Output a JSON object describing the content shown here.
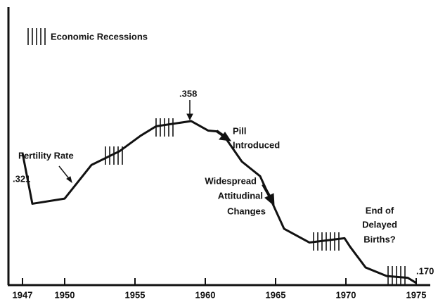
{
  "chart_data": {
    "type": "line",
    "legend_label": "Economic Recessions",
    "x": [
      1947,
      1947.7,
      1950,
      1951.9,
      1953.9,
      1955.4,
      1956.5,
      1959,
      1960.2,
      1960.9,
      1961.5,
      1962.6,
      1963.9,
      1965.6,
      1967.4,
      1969.9,
      1970.3,
      1971.4,
      1972.9,
      1974.4,
      1975
    ],
    "values": [
      0.321,
      0.262,
      0.268,
      0.307,
      0.323,
      0.341,
      0.352,
      0.358,
      0.347,
      0.346,
      0.337,
      0.311,
      0.294,
      0.233,
      0.217,
      0.222,
      0.212,
      0.188,
      0.178,
      0.176,
      0.17
    ],
    "color": "#111111",
    "xlim": [
      1946,
      1976
    ],
    "xticks": [
      1947,
      1950,
      1955,
      1960,
      1965,
      1970,
      1975
    ],
    "ylim": [
      0.1675,
      0.4905
    ],
    "annotations": [
      {
        "lines": [
          ".321"
        ]
      },
      {
        "lines": [
          "Fertility Rate"
        ]
      },
      {
        "lines": [
          ".358"
        ]
      },
      {
        "lines": [
          "Pill",
          "Introduced"
        ]
      },
      {
        "lines": [
          "Widespread",
          "Attitudinal",
          "Changes"
        ]
      },
      {
        "lines": [
          "End of",
          "Delayed",
          "Births?"
        ]
      },
      {
        "lines": [
          ".170"
        ]
      }
    ]
  }
}
